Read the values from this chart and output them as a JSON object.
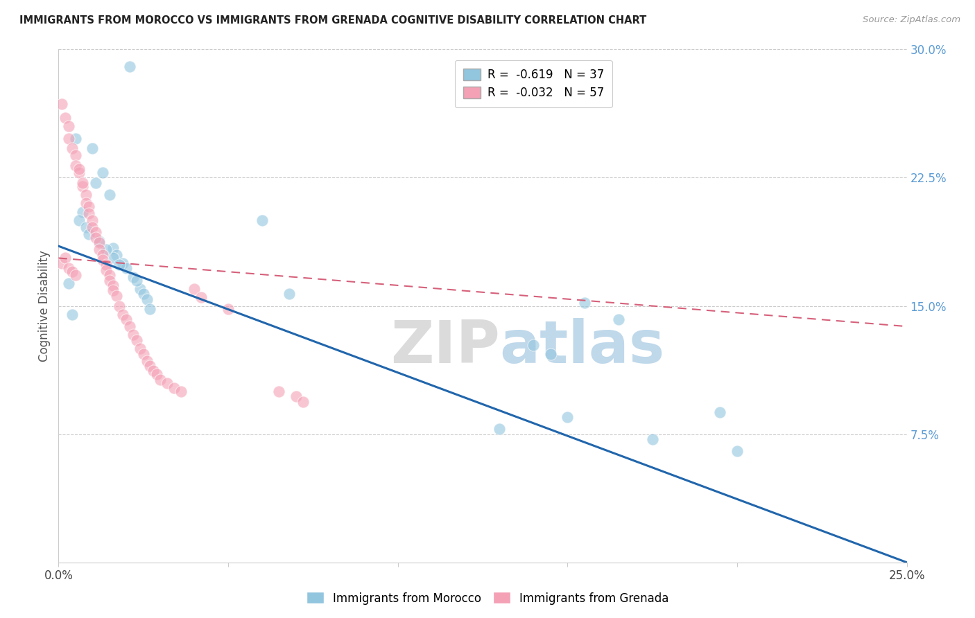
{
  "title": "IMMIGRANTS FROM MOROCCO VS IMMIGRANTS FROM GRENADA COGNITIVE DISABILITY CORRELATION CHART",
  "source": "Source: ZipAtlas.com",
  "ylabel": "Cognitive Disability",
  "legend_morocco": "Immigrants from Morocco",
  "legend_grenada": "Immigrants from Grenada",
  "R_morocco": -0.619,
  "N_morocco": 37,
  "R_grenada": -0.032,
  "N_grenada": 57,
  "color_morocco": "#92c5de",
  "color_grenada": "#f4a0b5",
  "line_morocco": "#2166ac",
  "line_grenada": "#d6607a",
  "xlim": [
    0.0,
    0.25
  ],
  "ylim": [
    0.0,
    0.3
  ],
  "ytick_right": [
    0.075,
    0.15,
    0.225,
    0.3
  ],
  "ytick_right_labels": [
    "7.5%",
    "15.0%",
    "22.5%",
    "30.0%"
  ],
  "morocco_line_x0": 0.0,
  "morocco_line_y0": 0.185,
  "morocco_line_x1": 0.25,
  "morocco_line_y1": 0.0,
  "grenada_line_x0": 0.0,
  "grenada_line_y0": 0.178,
  "grenada_line_x1": 0.25,
  "grenada_line_y1": 0.138,
  "morocco_x": [
    0.021,
    0.005,
    0.01,
    0.013,
    0.011,
    0.015,
    0.007,
    0.006,
    0.008,
    0.009,
    0.012,
    0.016,
    0.017,
    0.019,
    0.02,
    0.022,
    0.003,
    0.024,
    0.025,
    0.026,
    0.06,
    0.068,
    0.155,
    0.14,
    0.145,
    0.2,
    0.175,
    0.016,
    0.018,
    0.014,
    0.023,
    0.004,
    0.027,
    0.13,
    0.15,
    0.195,
    0.165
  ],
  "morocco_y": [
    0.29,
    0.248,
    0.242,
    0.228,
    0.222,
    0.215,
    0.205,
    0.2,
    0.196,
    0.192,
    0.188,
    0.184,
    0.18,
    0.175,
    0.172,
    0.167,
    0.163,
    0.16,
    0.157,
    0.154,
    0.2,
    0.157,
    0.152,
    0.127,
    0.122,
    0.065,
    0.072,
    0.178,
    0.174,
    0.183,
    0.165,
    0.145,
    0.148,
    0.078,
    0.085,
    0.088,
    0.142
  ],
  "grenada_x": [
    0.001,
    0.002,
    0.003,
    0.003,
    0.004,
    0.005,
    0.005,
    0.006,
    0.006,
    0.007,
    0.007,
    0.008,
    0.008,
    0.009,
    0.009,
    0.01,
    0.01,
    0.011,
    0.011,
    0.012,
    0.012,
    0.013,
    0.013,
    0.014,
    0.014,
    0.015,
    0.015,
    0.016,
    0.016,
    0.017,
    0.018,
    0.019,
    0.02,
    0.021,
    0.022,
    0.023,
    0.024,
    0.025,
    0.026,
    0.027,
    0.028,
    0.029,
    0.03,
    0.032,
    0.034,
    0.036,
    0.04,
    0.042,
    0.05,
    0.065,
    0.07,
    0.072,
    0.001,
    0.002,
    0.003,
    0.004,
    0.005
  ],
  "grenada_y": [
    0.268,
    0.26,
    0.255,
    0.248,
    0.242,
    0.238,
    0.232,
    0.228,
    0.23,
    0.22,
    0.222,
    0.215,
    0.21,
    0.208,
    0.204,
    0.2,
    0.196,
    0.193,
    0.19,
    0.187,
    0.183,
    0.18,
    0.177,
    0.174,
    0.171,
    0.168,
    0.165,
    0.162,
    0.159,
    0.156,
    0.15,
    0.145,
    0.142,
    0.138,
    0.133,
    0.13,
    0.125,
    0.122,
    0.118,
    0.115,
    0.112,
    0.11,
    0.107,
    0.105,
    0.102,
    0.1,
    0.16,
    0.155,
    0.148,
    0.1,
    0.097,
    0.094,
    0.175,
    0.178,
    0.172,
    0.17,
    0.168
  ]
}
